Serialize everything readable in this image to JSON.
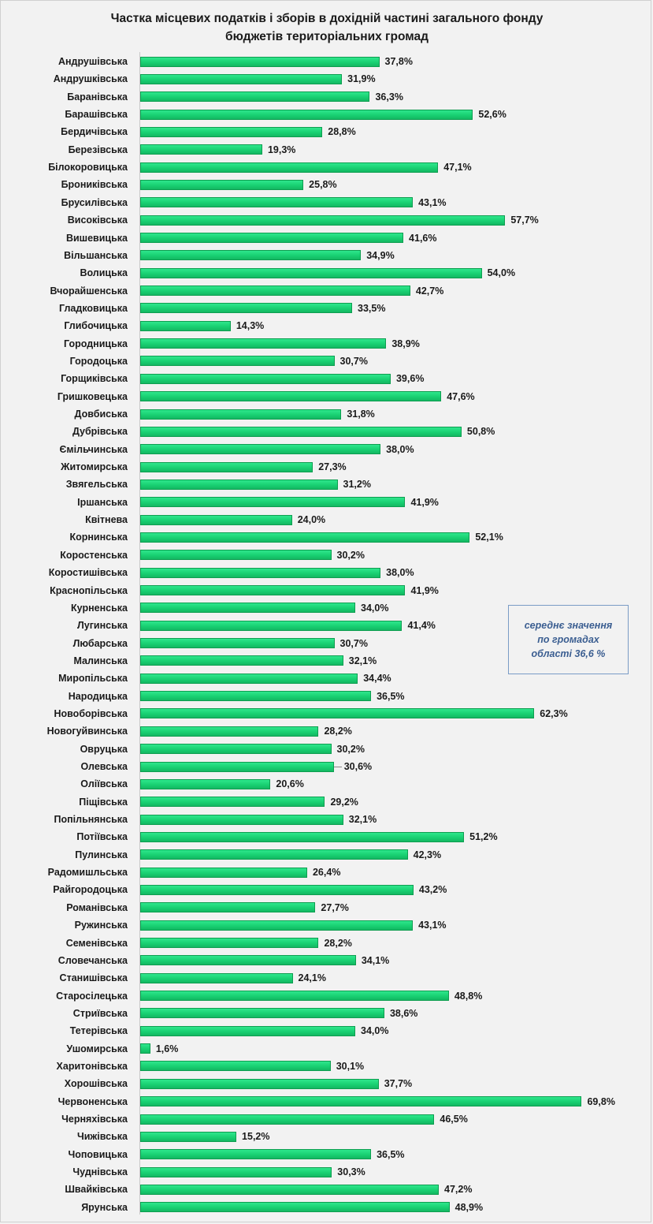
{
  "chart_data": {
    "type": "bar",
    "orientation": "horizontal",
    "title_lines": [
      "Частка місцевих податків і зборів в дохідній частині загального фонду",
      "бюджетів територіальних громад"
    ],
    "title": "Частка місцевих податків і зборів в дохідній частині загального фонду бюджетів територіальних громад",
    "xlabel": "",
    "ylabel": "",
    "xlim": [
      0,
      70
    ],
    "grid": false,
    "legend": "none",
    "bar_color": "#19d072",
    "categories": [
      "Андрушівська",
      "Андрушківська",
      "Баранівська",
      "Барашівська",
      "Бердичівська",
      "Березівська",
      "Білокоровицька",
      "Брониківська",
      "Брусилівська",
      "Високівська",
      "Вишевицька",
      "Вільшанська",
      "Волицька",
      "Вчорайшенська",
      "Гладковицька",
      "Глибочицька",
      "Городницька",
      "Городоцька",
      "Горщиківська",
      "Гришковецька",
      "Довбиська",
      "Дубрівська",
      "Ємільчинська",
      "Житомирська",
      "Звягельська",
      "Іршанська",
      "Квітнева",
      "Корнинська",
      "Коростенська",
      "Коростишівська",
      "Краснопільська",
      "Курненська",
      "Лугинська",
      "Любарська",
      "Малинська",
      "Миропільська",
      "Народицька",
      "Новоборівська",
      "Новогуйвинська",
      "Овруцька",
      "Олевська",
      "Оліївська",
      "Піщівська",
      "Попільнянська",
      "Потіївська",
      "Пулинська",
      "Радомишльська",
      "Райгородоцька",
      "Романівська",
      "Ружинська",
      "Семенівська",
      "Словечанська",
      "Станишівська",
      "Старосілецька",
      "Стриївська",
      "Тетерівська",
      "Ушомирська",
      "Харитонівська",
      "Хорошівська",
      "Червоненська",
      "Черняхівська",
      "Чижівська",
      "Чоповицька",
      "Чуднівська",
      "Швайківська",
      "Ярунська"
    ],
    "values": [
      37.8,
      31.9,
      36.3,
      52.6,
      28.8,
      19.3,
      47.1,
      25.8,
      43.1,
      57.7,
      41.6,
      34.9,
      54.0,
      42.7,
      33.5,
      14.3,
      38.9,
      30.7,
      39.6,
      47.6,
      31.8,
      50.8,
      38.0,
      27.3,
      31.2,
      41.9,
      24.0,
      52.1,
      30.2,
      38.0,
      41.9,
      34.0,
      41.4,
      30.7,
      32.1,
      34.4,
      36.5,
      62.3,
      28.2,
      30.2,
      30.6,
      20.6,
      29.2,
      32.1,
      51.2,
      42.3,
      26.4,
      43.2,
      27.7,
      43.1,
      28.2,
      34.1,
      24.1,
      48.8,
      38.6,
      34.0,
      1.6,
      30.1,
      37.7,
      69.8,
      46.5,
      15.2,
      36.5,
      30.3,
      47.2,
      48.9
    ],
    "value_labels": [
      "37,8%",
      "31,9%",
      "36,3%",
      "52,6%",
      "28,8%",
      "19,3%",
      "47,1%",
      "25,8%",
      "43,1%",
      "57,7%",
      "41,6%",
      "34,9%",
      "54,0%",
      "42,7%",
      "33,5%",
      "14,3%",
      "38,9%",
      "30,7%",
      "39,6%",
      "47,6%",
      "31,8%",
      "50,8%",
      "38,0%",
      "27,3%",
      "31,2%",
      "41,9%",
      "24,0%",
      "52,1%",
      "30,2%",
      "38,0%",
      "41,9%",
      "34,0%",
      "41,4%",
      "30,7%",
      "32,1%",
      "34,4%",
      "36,5%",
      "62,3%",
      "28,2%",
      "30,2%",
      "30,6%",
      "20,6%",
      "29,2%",
      "32,1%",
      "51,2%",
      "42,3%",
      "26,4%",
      "43,2%",
      "27,7%",
      "43,1%",
      "28,2%",
      "34,1%",
      "24,1%",
      "48,8%",
      "38,6%",
      "34,0%",
      "1,6%",
      "30,1%",
      "37,7%",
      "69,8%",
      "46,5%",
      "15,2%",
      "36,5%",
      "30,3%",
      "47,2%",
      "48,9%"
    ],
    "annotations": [
      {
        "lines": [
          "середнє значення",
          "по громадах",
          "області 36,6 %"
        ],
        "position": "right-middle",
        "style": "italic"
      }
    ]
  }
}
